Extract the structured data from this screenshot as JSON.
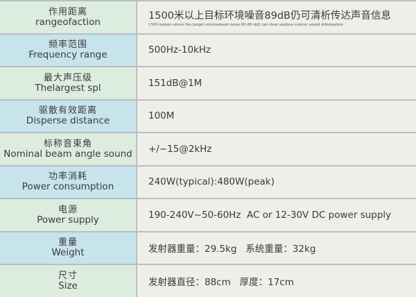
{
  "rows": [
    {
      "zh": "作用距离",
      "en": "rangeofaction",
      "value": "1500米以上目标环境噪音89dB仍可清析传达声音信息",
      "sub": "1500 meters above the target environment noise 89 dB still can clear analyse convey sound information"
    },
    {
      "zh": "频率范围",
      "en": "Frequency range",
      "value": "500Hz-10kHz"
    },
    {
      "zh": "最大声压级",
      "en": "Thelargest spl",
      "value": "151dB@1M"
    },
    {
      "zh": "驱散有效距离",
      "en": "Disperse distance",
      "value": "100M"
    },
    {
      "zh": "标称音束角",
      "en": "Nominal beam angle sound",
      "value": "+/−15@2kHz"
    },
    {
      "zh": "功率消耗",
      "en": "Power consumption",
      "value": "240W(typical):480W(peak)"
    },
    {
      "zh": "电源",
      "en": "Power supply",
      "value": "190-240V~50-60Hz  AC or 12-30V DC power supply"
    },
    {
      "zh": "重量",
      "en": "Weight",
      "value": "发射器重量：29.5kg   系统重量：32kg"
    },
    {
      "zh": "尺寸",
      "en": "Size",
      "value": "发射器直径：88cm   厚度：17cm"
    }
  ],
  "colors": {
    "label_green": "#dcecdf",
    "label_blue": "#c7e4ec",
    "value_bg": "#efeee8",
    "border": "#b9bec2"
  }
}
